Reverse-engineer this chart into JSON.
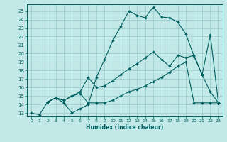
{
  "xlabel": "Humidex (Indice chaleur)",
  "bg_color": "#c2e8e8",
  "grid_color": "#99cccc",
  "line_color": "#005f5f",
  "xlim": [
    -0.5,
    23.5
  ],
  "ylim": [
    12.6,
    25.8
  ],
  "xticks": [
    0,
    1,
    2,
    3,
    4,
    5,
    6,
    7,
    8,
    9,
    10,
    11,
    12,
    13,
    14,
    15,
    16,
    17,
    18,
    19,
    20,
    21,
    22,
    23
  ],
  "yticks": [
    13,
    14,
    15,
    16,
    17,
    18,
    19,
    20,
    21,
    22,
    23,
    24,
    25
  ],
  "line1_x": [
    0,
    1,
    2,
    3,
    4,
    5,
    6,
    7,
    8,
    9,
    10,
    11,
    12,
    13,
    14,
    15,
    16,
    17,
    18,
    19,
    20,
    21,
    22,
    23
  ],
  "line1_y": [
    13,
    12.8,
    14.3,
    14.8,
    14.2,
    13.0,
    13.5,
    14.0,
    17.2,
    19.3,
    21.5,
    23.2,
    25.0,
    24.5,
    24.2,
    25.5,
    24.3,
    24.2,
    23.7,
    22.3,
    19.7,
    17.5,
    22.2,
    14.2
  ],
  "line2_x": [
    2,
    3,
    4,
    5,
    6,
    7,
    8,
    9,
    10,
    11,
    12,
    13,
    14,
    15,
    16,
    17,
    18,
    19,
    20,
    21,
    22,
    23
  ],
  "line2_y": [
    14.3,
    14.8,
    14.5,
    15.0,
    15.5,
    17.2,
    16.0,
    16.2,
    16.8,
    17.5,
    18.2,
    18.8,
    19.5,
    20.2,
    19.3,
    18.5,
    19.8,
    19.5,
    19.8,
    17.5,
    15.5,
    14.2
  ],
  "line3_x": [
    2,
    3,
    4,
    5,
    6,
    7,
    8,
    9,
    10,
    11,
    12,
    13,
    14,
    15,
    16,
    17,
    18,
    19,
    20,
    21,
    22,
    23
  ],
  "line3_y": [
    14.3,
    14.8,
    14.5,
    15.0,
    15.3,
    14.2,
    14.2,
    14.2,
    14.5,
    15.0,
    15.5,
    15.8,
    16.2,
    16.7,
    17.2,
    17.8,
    18.5,
    19.0,
    14.2,
    14.2,
    14.2,
    14.2
  ]
}
